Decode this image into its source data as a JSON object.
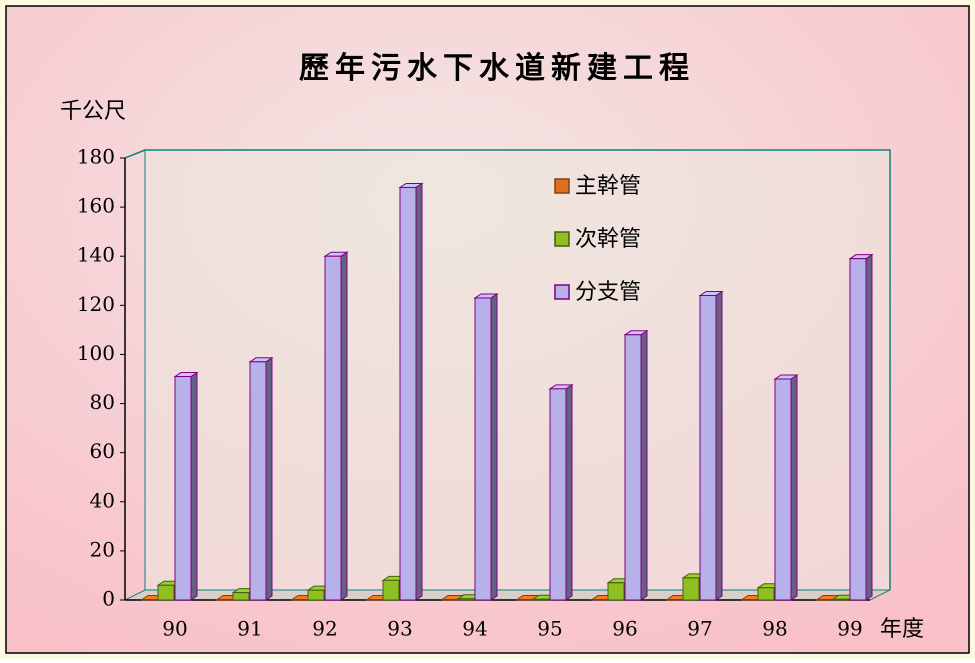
{
  "chart_data": {
    "type": "bar3d",
    "title": "歷年污水下水道新建工程",
    "y_label": "千公尺",
    "x_label": "年度",
    "categories": [
      "90",
      "91",
      "92",
      "93",
      "94",
      "95",
      "96",
      "97",
      "98",
      "99"
    ],
    "series": [
      {
        "name": "主幹管",
        "color": "#e07020",
        "values": [
          0.2,
          0.2,
          0.2,
          0.2,
          0.2,
          0.2,
          0.2,
          0.2,
          0.2,
          0.2
        ]
      },
      {
        "name": "次幹管",
        "color": "#8fbf20",
        "values": [
          6,
          3,
          4,
          8,
          0.5,
          0.3,
          7,
          9,
          5,
          0.3
        ]
      },
      {
        "name": "分支管",
        "color": "#b8b0e8",
        "values": [
          91,
          97,
          140,
          168,
          123,
          86,
          108,
          124,
          90,
          139
        ]
      }
    ],
    "ylim": [
      0,
      180
    ],
    "yticks": [
      0,
      20,
      40,
      60,
      80,
      100,
      120,
      140,
      160,
      180
    ],
    "legend": "upper right"
  }
}
